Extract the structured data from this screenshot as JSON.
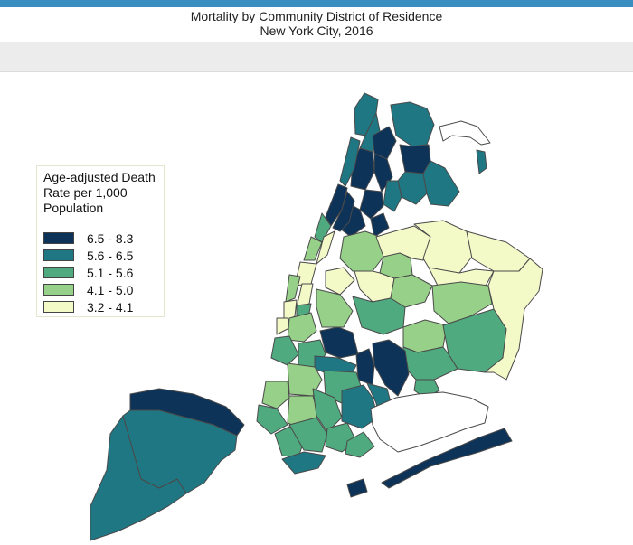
{
  "title": "Mortality by Community District of Residence",
  "subtitle": "New York City, 2016",
  "legend": {
    "title": "Age-adjusted Death Rate per 1,000 Population",
    "classes": [
      {
        "label": "6.5 - 8.3",
        "color": "#0d3358"
      },
      {
        "label": "5.6 - 6.5",
        "color": "#1f7783"
      },
      {
        "label": "5.1 - 5.6",
        "color": "#4faa7f"
      },
      {
        "label": "4.1 - 5.0",
        "color": "#97d189"
      },
      {
        "label": "3.2 - 4.1",
        "color": "#f4f9c8"
      }
    ]
  },
  "colors": {
    "topbar": "#3a8fc0",
    "toolbar": "#ececec",
    "district_border": "#4a4a4a",
    "no_data": "#ffffff"
  }
}
